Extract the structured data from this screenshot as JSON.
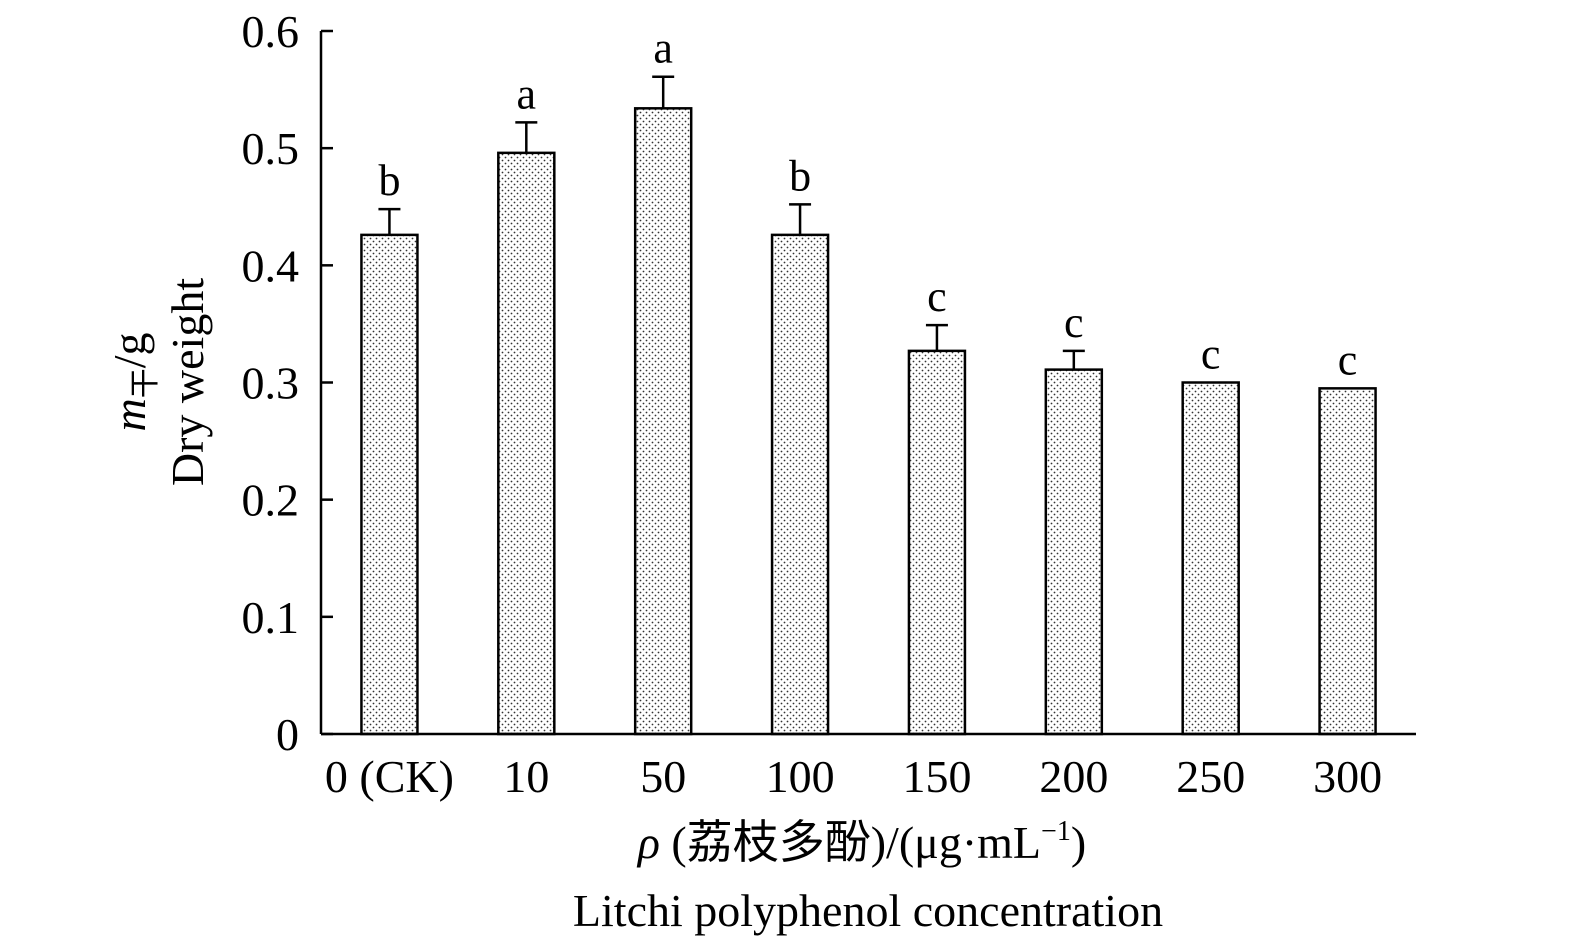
{
  "chart_data": {
    "type": "bar",
    "categories": [
      "0 (CK)",
      "10",
      "50",
      "100",
      "150",
      "200",
      "250",
      "300"
    ],
    "values": [
      0.426,
      0.496,
      0.534,
      0.426,
      0.327,
      0.311,
      0.3,
      0.295
    ],
    "errors": [
      0.022,
      0.026,
      0.027,
      0.026,
      0.022,
      0.016,
      0.0,
      0.0
    ],
    "significance": [
      "b",
      "a",
      "a",
      "b",
      "c",
      "c",
      "c",
      "c"
    ],
    "ylim": [
      0,
      0.6
    ],
    "yticks": [
      "0",
      "0.1",
      "0.2",
      "0.3",
      "0.4",
      "0.5",
      "0.6"
    ],
    "ylabel": {
      "symbol": "m",
      "subscript": "干",
      "unit": "/g",
      "english": "Dry weight"
    },
    "xlabel": {
      "symbol": "ρ",
      "chinese": " (荔枝多酚)/(μg·mL",
      "superscript": "−1",
      "close": ")",
      "english": "Litchi polyphenol concentration"
    },
    "bar_fill": "dotted"
  }
}
